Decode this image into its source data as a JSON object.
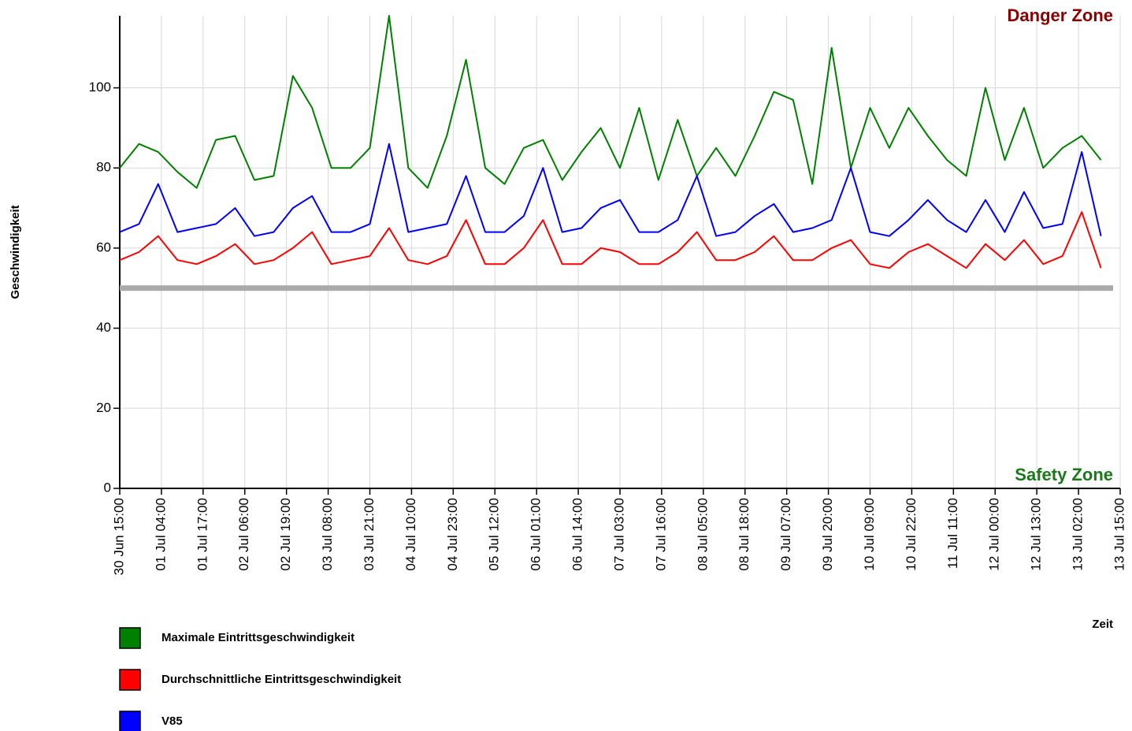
{
  "chart_data": {
    "type": "line",
    "y_label": "Geschwindigkeit",
    "x_label": "Zeit",
    "annotations": [
      {
        "text": "Danger Zone",
        "color": "#8b0000"
      },
      {
        "text": "Safety Zone",
        "color": "#1a7a1a"
      }
    ],
    "threshold": 50,
    "threshold_color": "#aaaaaa",
    "x": [
      "30 Jun 15:00",
      "30 Jun 21:00",
      "01 Jul 03:00",
      "01 Jul 09:00",
      "01 Jul 15:00",
      "01 Jul 21:00",
      "02 Jul 03:00",
      "02 Jul 09:00",
      "02 Jul 15:00",
      "02 Jul 21:00",
      "03 Jul 03:00",
      "03 Jul 09:00",
      "03 Jul 15:00",
      "03 Jul 21:00",
      "04 Jul 03:00",
      "04 Jul 09:00",
      "04 Jul 15:00",
      "04 Jul 21:00",
      "05 Jul 03:00",
      "05 Jul 09:00",
      "05 Jul 15:00",
      "05 Jul 21:00",
      "06 Jul 03:00",
      "06 Jul 09:00",
      "06 Jul 15:00",
      "06 Jul 21:00",
      "07 Jul 03:00",
      "07 Jul 09:00",
      "07 Jul 15:00",
      "07 Jul 21:00",
      "08 Jul 03:00",
      "08 Jul 09:00",
      "08 Jul 15:00",
      "08 Jul 21:00",
      "09 Jul 03:00",
      "09 Jul 09:00",
      "09 Jul 15:00",
      "09 Jul 21:00",
      "10 Jul 03:00",
      "10 Jul 09:00",
      "10 Jul 15:00",
      "10 Jul 21:00",
      "11 Jul 03:00",
      "11 Jul 09:00",
      "11 Jul 15:00",
      "11 Jul 21:00",
      "12 Jul 03:00",
      "12 Jul 09:00",
      "12 Jul 15:00",
      "12 Jul 21:00",
      "13 Jul 03:00",
      "13 Jul 09:00"
    ],
    "series": [
      {
        "name": "Maximale Eintrittsgeschwindigkeit",
        "color": "#008000",
        "values": [
          80,
          86,
          84,
          79,
          75,
          87,
          88,
          77,
          78,
          103,
          95,
          80,
          80,
          85,
          118,
          80,
          75,
          88,
          107,
          80,
          76,
          85,
          87,
          77,
          84,
          90,
          80,
          95,
          77,
          92,
          78,
          85,
          78,
          88,
          99,
          97,
          76,
          110,
          80,
          95,
          85,
          95,
          88,
          82,
          78,
          100,
          82,
          95,
          80,
          85,
          88,
          82
        ]
      },
      {
        "name": "Durchschnittliche Eintrittsgeschwindigkeit",
        "color": "#ff0000",
        "values": [
          57,
          59,
          63,
          57,
          56,
          58,
          61,
          56,
          57,
          60,
          64,
          56,
          57,
          58,
          65,
          57,
          56,
          58,
          67,
          56,
          56,
          60,
          67,
          56,
          56,
          60,
          59,
          56,
          56,
          59,
          64,
          57,
          57,
          59,
          63,
          57,
          57,
          60,
          62,
          56,
          55,
          59,
          61,
          58,
          55,
          61,
          57,
          62,
          56,
          58,
          69,
          55
        ]
      },
      {
        "name": "V85",
        "color": "#0000ff",
        "values": [
          64,
          66,
          76,
          64,
          65,
          66,
          70,
          63,
          64,
          70,
          73,
          64,
          64,
          66,
          86,
          64,
          65,
          66,
          78,
          64,
          64,
          68,
          80,
          64,
          65,
          70,
          72,
          64,
          64,
          67,
          78,
          63,
          64,
          68,
          71,
          64,
          65,
          67,
          80,
          64,
          63,
          67,
          72,
          67,
          64,
          72,
          64,
          74,
          65,
          66,
          84,
          63
        ]
      }
    ],
    "xlim": [
      "30 Jun 15:00",
      "13 Jul 15:00"
    ],
    "xticks": [
      "30 Jun 15:00",
      "01 Jul 04:00",
      "01 Jul 17:00",
      "02 Jul 06:00",
      "02 Jul 19:00",
      "03 Jul 08:00",
      "03 Jul 21:00",
      "04 Jul 10:00",
      "04 Jul 23:00",
      "05 Jul 12:00",
      "06 Jul 01:00",
      "06 Jul 14:00",
      "07 Jul 03:00",
      "07 Jul 16:00",
      "08 Jul 05:00",
      "08 Jul 18:00",
      "09 Jul 07:00",
      "09 Jul 20:00",
      "10 Jul 09:00",
      "10 Jul 22:00",
      "11 Jul 11:00",
      "12 Jul 00:00",
      "12 Jul 13:00",
      "13 Jul 02:00",
      "13 Jul 15:00"
    ],
    "ylim": [
      0,
      118
    ],
    "yticks": [
      0,
      20,
      40,
      60,
      80,
      100
    ],
    "grid": true
  }
}
